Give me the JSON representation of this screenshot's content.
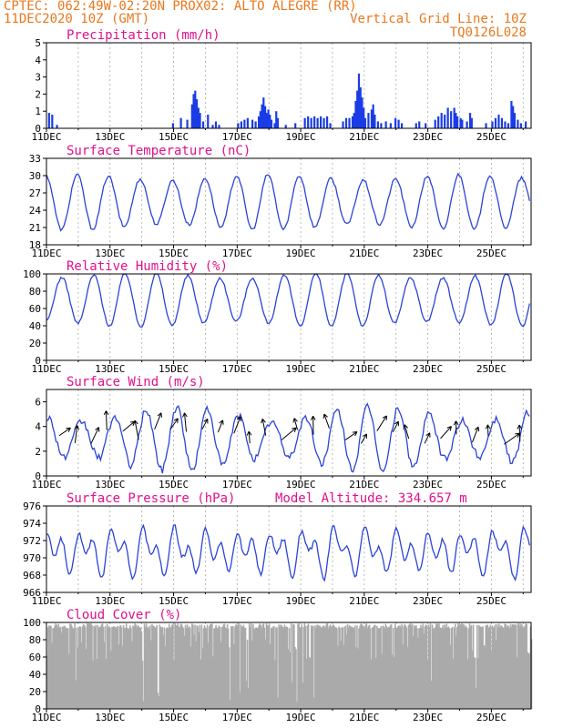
{
  "header": {
    "line1_left": "CPTEC:  062:49W-02:20N  PROX02: ALTO ALEGRE (RR)",
    "line2_left": "11DEC2020 10Z (GMT)",
    "line2_right": "Vertical Grid Line: 10Z",
    "line3_right": "TQ0126L028"
  },
  "x_axis": {
    "labels": [
      "11DEC",
      "13DEC",
      "15DEC",
      "17DEC",
      "19DEC",
      "21DEC",
      "23DEC",
      "25DEC"
    ],
    "label_days": [
      0,
      2,
      4,
      6,
      8,
      10,
      12,
      14
    ],
    "days_span": 15.25
  },
  "chart_data": [
    {
      "type": "bar",
      "title": "Precipitation (mm/h)",
      "ylim": [
        0,
        5
      ],
      "yticks": [
        0,
        1,
        2,
        3,
        4,
        5
      ],
      "bars": [
        [
          0.05,
          0.9
        ],
        [
          0.15,
          0.8
        ],
        [
          0.3,
          0.2
        ],
        [
          3.95,
          0.3
        ],
        [
          4.2,
          0.6
        ],
        [
          4.4,
          0.5
        ],
        [
          4.55,
          1.4
        ],
        [
          4.6,
          2.0
        ],
        [
          4.65,
          2.2
        ],
        [
          4.7,
          1.7
        ],
        [
          4.75,
          1.2
        ],
        [
          4.8,
          0.9
        ],
        [
          4.9,
          0.4
        ],
        [
          5.05,
          0.8
        ],
        [
          5.2,
          0.2
        ],
        [
          5.3,
          0.4
        ],
        [
          5.4,
          0.2
        ],
        [
          6.0,
          0.3
        ],
        [
          6.1,
          0.4
        ],
        [
          6.2,
          0.5
        ],
        [
          6.3,
          0.6
        ],
        [
          6.45,
          0.5
        ],
        [
          6.55,
          0.4
        ],
        [
          6.65,
          0.7
        ],
        [
          6.7,
          1.0
        ],
        [
          6.75,
          1.4
        ],
        [
          6.8,
          1.8
        ],
        [
          6.85,
          1.3
        ],
        [
          6.9,
          0.9
        ],
        [
          6.95,
          1.1
        ],
        [
          7.0,
          0.8
        ],
        [
          7.05,
          0.5
        ],
        [
          7.15,
          0.3
        ],
        [
          7.2,
          1.0
        ],
        [
          7.25,
          0.6
        ],
        [
          7.5,
          0.2
        ],
        [
          7.8,
          0.3
        ],
        [
          8.1,
          0.6
        ],
        [
          8.2,
          0.7
        ],
        [
          8.3,
          0.6
        ],
        [
          8.4,
          0.7
        ],
        [
          8.5,
          0.6
        ],
        [
          8.6,
          0.7
        ],
        [
          8.7,
          0.6
        ],
        [
          8.8,
          0.7
        ],
        [
          8.9,
          0.3
        ],
        [
          9.3,
          0.4
        ],
        [
          9.4,
          0.6
        ],
        [
          9.5,
          0.6
        ],
        [
          9.6,
          0.7
        ],
        [
          9.65,
          0.9
        ],
        [
          9.7,
          1.6
        ],
        [
          9.75,
          2.2
        ],
        [
          9.8,
          3.2
        ],
        [
          9.85,
          2.4
        ],
        [
          9.9,
          1.8
        ],
        [
          9.95,
          1.2
        ],
        [
          10.0,
          0.6
        ],
        [
          10.1,
          0.9
        ],
        [
          10.2,
          1.1
        ],
        [
          10.25,
          1.4
        ],
        [
          10.3,
          0.8
        ],
        [
          10.4,
          0.4
        ],
        [
          10.5,
          0.3
        ],
        [
          10.65,
          0.4
        ],
        [
          10.8,
          0.3
        ],
        [
          10.95,
          0.6
        ],
        [
          11.05,
          0.5
        ],
        [
          11.15,
          0.3
        ],
        [
          11.6,
          0.3
        ],
        [
          11.7,
          0.4
        ],
        [
          11.9,
          0.3
        ],
        [
          12.2,
          0.5
        ],
        [
          12.3,
          0.7
        ],
        [
          12.4,
          0.9
        ],
        [
          12.5,
          0.8
        ],
        [
          12.6,
          1.2
        ],
        [
          12.7,
          1.0
        ],
        [
          12.8,
          1.2
        ],
        [
          12.85,
          0.9
        ],
        [
          12.9,
          0.7
        ],
        [
          13.0,
          0.6
        ],
        [
          13.05,
          0.5
        ],
        [
          13.2,
          0.4
        ],
        [
          13.3,
          0.9
        ],
        [
          13.35,
          0.6
        ],
        [
          13.8,
          0.3
        ],
        [
          14.0,
          0.4
        ],
        [
          14.1,
          0.6
        ],
        [
          14.2,
          0.8
        ],
        [
          14.3,
          0.6
        ],
        [
          14.4,
          0.4
        ],
        [
          14.5,
          0.3
        ],
        [
          14.6,
          1.6
        ],
        [
          14.65,
          1.3
        ],
        [
          14.7,
          0.9
        ],
        [
          14.8,
          0.5
        ],
        [
          14.9,
          0.3
        ],
        [
          15.05,
          0.4
        ]
      ]
    },
    {
      "type": "line",
      "title": "Surface Temperature (nC)",
      "ylim": [
        18,
        33
      ],
      "yticks": [
        18,
        21,
        24,
        27,
        30,
        33
      ],
      "amp": 4.3,
      "mean": 25.4,
      "phase": -0.72,
      "noise": 0.5
    },
    {
      "type": "line",
      "title": "Relative Humidity (%)",
      "ylim": [
        0,
        100
      ],
      "yticks": [
        0,
        20,
        40,
        60,
        80,
        100
      ],
      "amp": 28,
      "mean": 70,
      "phase": -0.22,
      "noise": 3
    },
    {
      "type": "line",
      "title": "Surface Wind (m/s)",
      "ylim": [
        0,
        7
      ],
      "yticks": [
        0,
        2,
        4,
        6
      ],
      "amp": 2.0,
      "mean": 3.0,
      "phase": -0.85,
      "noise": 0.6,
      "arrows": true
    },
    {
      "type": "line",
      "title": "Surface Pressure (hPa)",
      "subtitle": "Model Altitude: 334.657 m",
      "ylim": [
        966,
        976
      ],
      "yticks": [
        966,
        968,
        970,
        972,
        974,
        976
      ],
      "amp": 2.6,
      "mean": 970.8,
      "phase": 0.1,
      "noise": 0.5,
      "semidiurnal": true
    },
    {
      "type": "bar",
      "title": "Cloud Cover (%)",
      "ylim": [
        0,
        100
      ],
      "yticks": [
        0,
        20,
        40,
        60,
        80,
        100
      ],
      "fill": "dense"
    }
  ],
  "colors": {
    "header": "#e8781e",
    "panel_title": "#e0108c",
    "series": "#2a44d8",
    "bars": "#1a3ce6",
    "cloud": "#aaaaaa"
  }
}
